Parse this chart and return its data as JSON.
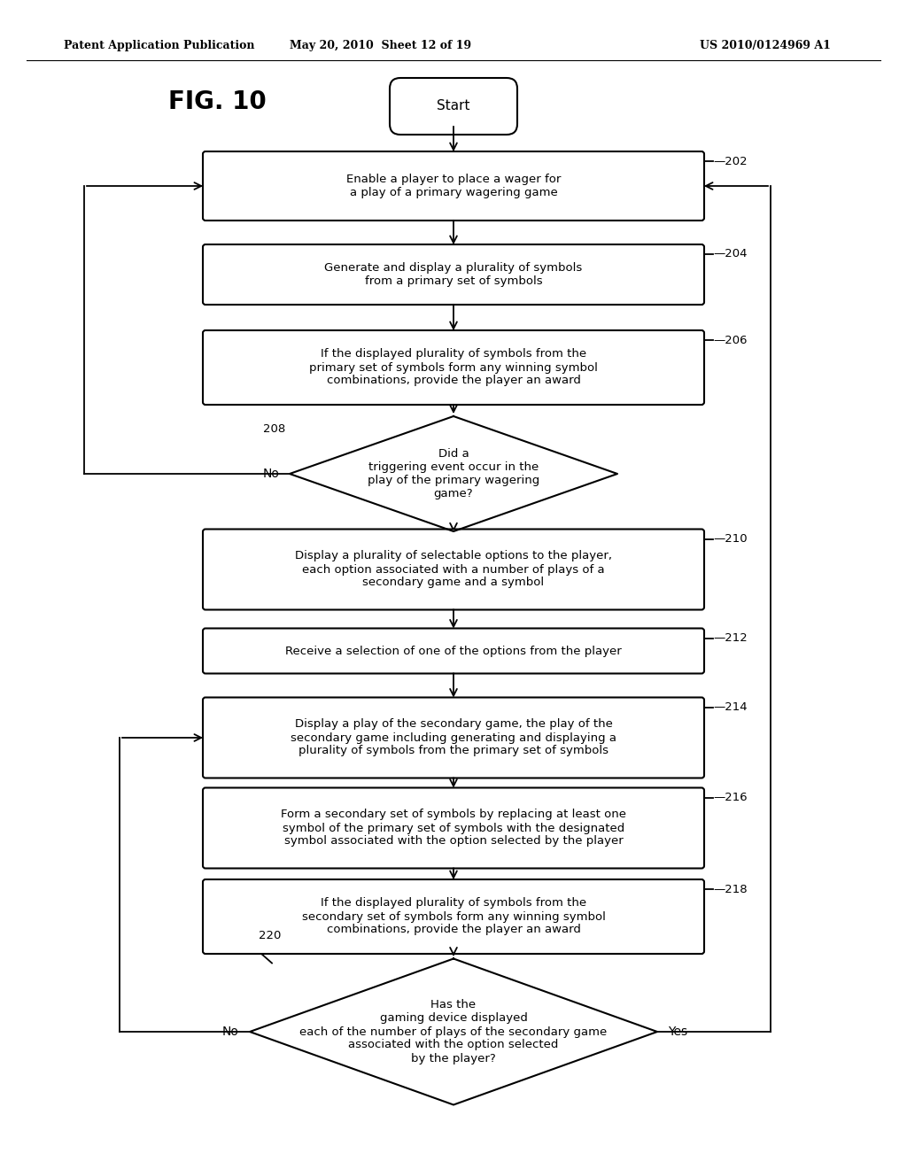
{
  "header_left": "Patent Application Publication",
  "header_mid": "May 20, 2010  Sheet 12 of 19",
  "header_right": "US 2010/0124969 A1",
  "fig_label": "FIG. 10",
  "start_text": "Start",
  "bg_color": "#ffffff",
  "nodes": {
    "202": "Enable a player to place a wager for\na play of a primary wagering game",
    "204": "Generate and display a plurality of symbols\nfrom a primary set of symbols",
    "206": "If the displayed plurality of symbols from the\nprimary set of symbols form any winning symbol\ncombinations, provide the player an award",
    "208": "Did a\ntriggering event occur in the\nplay of the primary wagering\ngame?",
    "210": "Display a plurality of selectable options to the player,\neach option associated with a number of plays of a\nsecondary game and a symbol",
    "212": "Receive a selection of one of the options from the player",
    "214": "Display a play of the secondary game, the play of the\nsecondary game including generating and displaying a\nplurality of symbols from the primary set of symbols",
    "216": "Form a secondary set of symbols by replacing at least one\nsymbol of the primary set of symbols with the designated\nsymbol associated with the option selected by the player",
    "218": "If the displayed plurality of symbols from the\nsecondary set of symbols form any winning symbol\ncombinations, provide the player an award",
    "220": "Has the\ngaming device displayed\neach of the number of plays of the secondary game\nassociated with the option selected\nby the player?"
  }
}
